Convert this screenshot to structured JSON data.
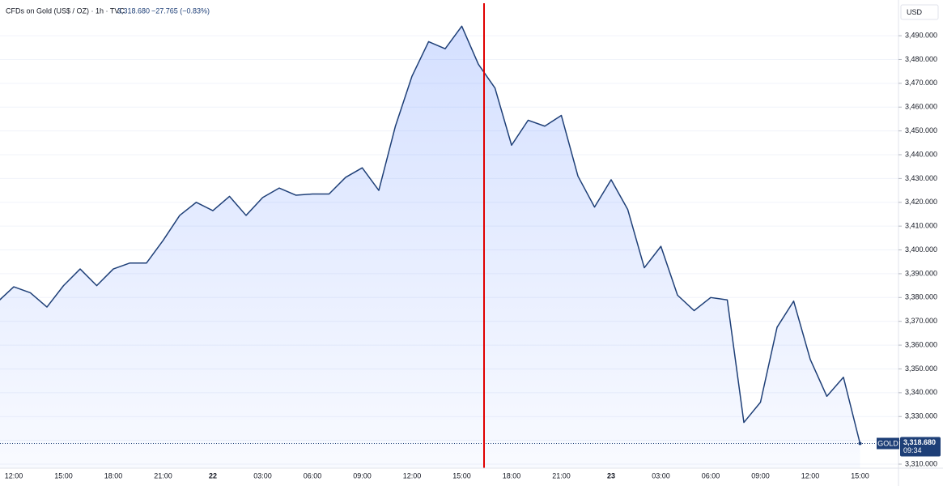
{
  "header": {
    "title": "CFDs on Gold (US$ / OZ) · 1h · TVC",
    "last": "3,318.680",
    "change": "−27.765 (−0.83%)"
  },
  "chart_data": {
    "type": "line",
    "categories": [
      null,
      "12:00",
      null,
      null,
      "15:00",
      null,
      null,
      "18:00",
      null,
      null,
      "21:00",
      null,
      null,
      "22",
      null,
      null,
      "03:00",
      null,
      null,
      "06:00",
      null,
      null,
      "09:00",
      null,
      null,
      "12:00",
      null,
      null,
      "15:00",
      null,
      null,
      "18:00",
      null,
      null,
      "21:00",
      null,
      null,
      "23",
      null,
      null,
      "03:00",
      null,
      null,
      "06:00",
      null,
      null,
      "09:00",
      null,
      null,
      "12:00",
      null,
      null,
      "15:00"
    ],
    "series": [
      {
        "name": "GOLD",
        "color": "#1e3f77",
        "values": [
          3378,
          3384.5,
          3382,
          3376,
          3385,
          3392,
          3385,
          3392,
          3394.5,
          3394.5,
          3404,
          3414.5,
          3420,
          3416.5,
          3422.5,
          3414.5,
          3422,
          3426,
          3423,
          3423.5,
          3423.5,
          3430.5,
          3434.5,
          3425,
          3452,
          3473,
          3487.5,
          3484.5,
          3494,
          3478,
          3468,
          3444,
          3454.5,
          3452,
          3456.5,
          3431,
          3418,
          3429.5,
          3417,
          3392.5,
          3401.5,
          3381,
          3374.5,
          3380,
          3379,
          3327.5,
          3336,
          3367.5,
          3378.5,
          3354,
          3338.5,
          3346.5,
          3318.68
        ],
        "value_labels": [
          null,
          null,
          null,
          null,
          null,
          null,
          null,
          null,
          null,
          null,
          null,
          null,
          null,
          null,
          null,
          null,
          null,
          null,
          null,
          null,
          null,
          null,
          null,
          null,
          null,
          null,
          null,
          null,
          null,
          null,
          null,
          null,
          null,
          null,
          null,
          null,
          null,
          null,
          null,
          null,
          null,
          null,
          null,
          null,
          null,
          null,
          null,
          null,
          null,
          null,
          null,
          null,
          "3,318.680"
        ]
      }
    ],
    "ylim": [
      3308.3,
      3503.3
    ],
    "yticks": [
      {
        "value": 3310,
        "label": "3,310.000"
      },
      {
        "value": 3320,
        "label": "3,320.000"
      },
      {
        "value": 3330,
        "label": "3,330.000"
      },
      {
        "value": 3340,
        "label": "3,340.000"
      },
      {
        "value": 3350,
        "label": "3,350.000"
      },
      {
        "value": 3360,
        "label": "3,360.000"
      },
      {
        "value": 3370,
        "label": "3,370.000"
      },
      {
        "value": 3380,
        "label": "3,380.000"
      },
      {
        "value": 3390,
        "label": "3,390.000"
      },
      {
        "value": 3400,
        "label": "3,400.000"
      },
      {
        "value": 3410,
        "label": "3,410.000"
      },
      {
        "value": 3420,
        "label": "3,420.000"
      },
      {
        "value": 3430,
        "label": "3,430.000"
      },
      {
        "value": 3440,
        "label": "3,440.000"
      },
      {
        "value": 3450,
        "label": "3,450.000"
      },
      {
        "value": 3460,
        "label": "3,460.000"
      },
      {
        "value": 3470,
        "label": "3,470.000"
      },
      {
        "value": 3480,
        "label": "3,480.000"
      },
      {
        "value": 3490,
        "label": "3,490.000"
      }
    ],
    "currency": "USD",
    "countdown": "09:34",
    "grid": true
  }
}
